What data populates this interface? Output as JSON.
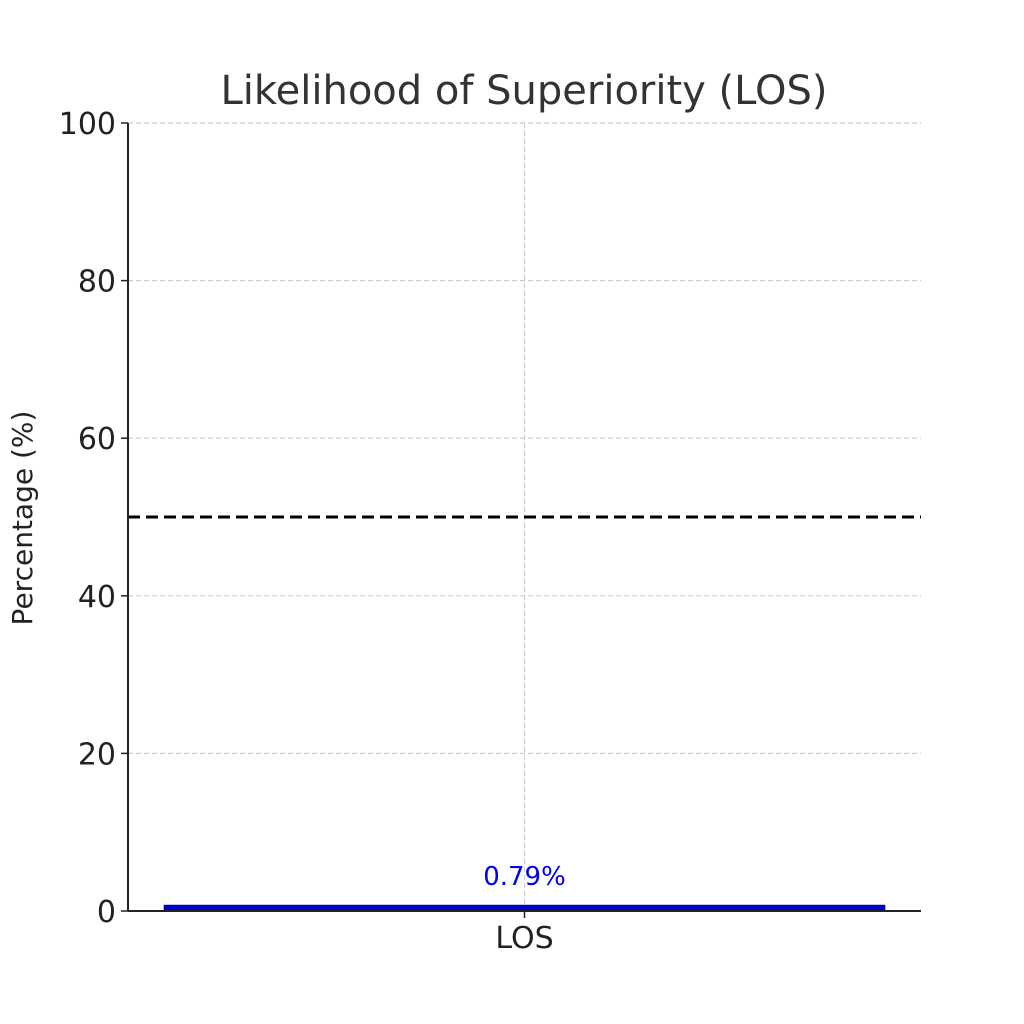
{
  "chart_data": {
    "type": "bar",
    "title": "Likelihood of Superiority (LOS)",
    "xlabel": "",
    "ylabel": "Percentage (%)",
    "categories": [
      "LOS"
    ],
    "values": [
      0.79
    ],
    "data_labels": [
      "0.79%"
    ],
    "ylim": [
      0,
      100
    ],
    "yticks": [
      0,
      20,
      40,
      60,
      80,
      100
    ],
    "ytick_labels": [
      "0",
      "20",
      "40",
      "60",
      "80",
      "100"
    ],
    "reference_line": {
      "y": 50,
      "style": "dashed",
      "color": "#000000"
    },
    "grid": true,
    "bar_color": "#0000cc",
    "label_color": "#0000ee"
  }
}
